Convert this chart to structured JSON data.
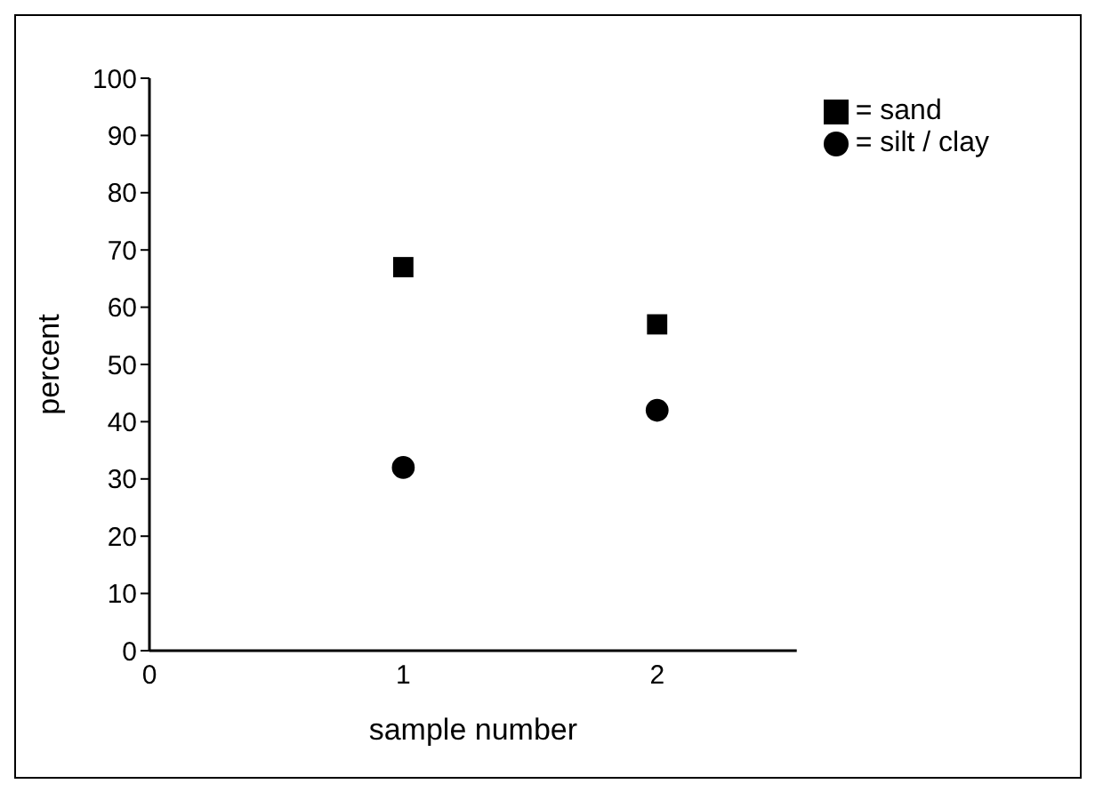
{
  "chart_data": {
    "type": "scatter",
    "xlabel": "sample number",
    "ylabel": "percent",
    "x": [
      1,
      2
    ],
    "xlim": [
      0,
      2.55
    ],
    "xticks": [
      0,
      1,
      2
    ],
    "ylim": [
      0,
      100
    ],
    "yticks": [
      0,
      10,
      20,
      30,
      40,
      50,
      60,
      70,
      80,
      90,
      100
    ],
    "legend": "top right",
    "series": [
      {
        "name": "= sand",
        "color": "#000000",
        "marker": "square",
        "values": [
          67,
          57
        ]
      },
      {
        "name": "= silt / clay",
        "color": "#000000",
        "marker": "circle",
        "values": [
          32,
          42
        ]
      }
    ]
  }
}
